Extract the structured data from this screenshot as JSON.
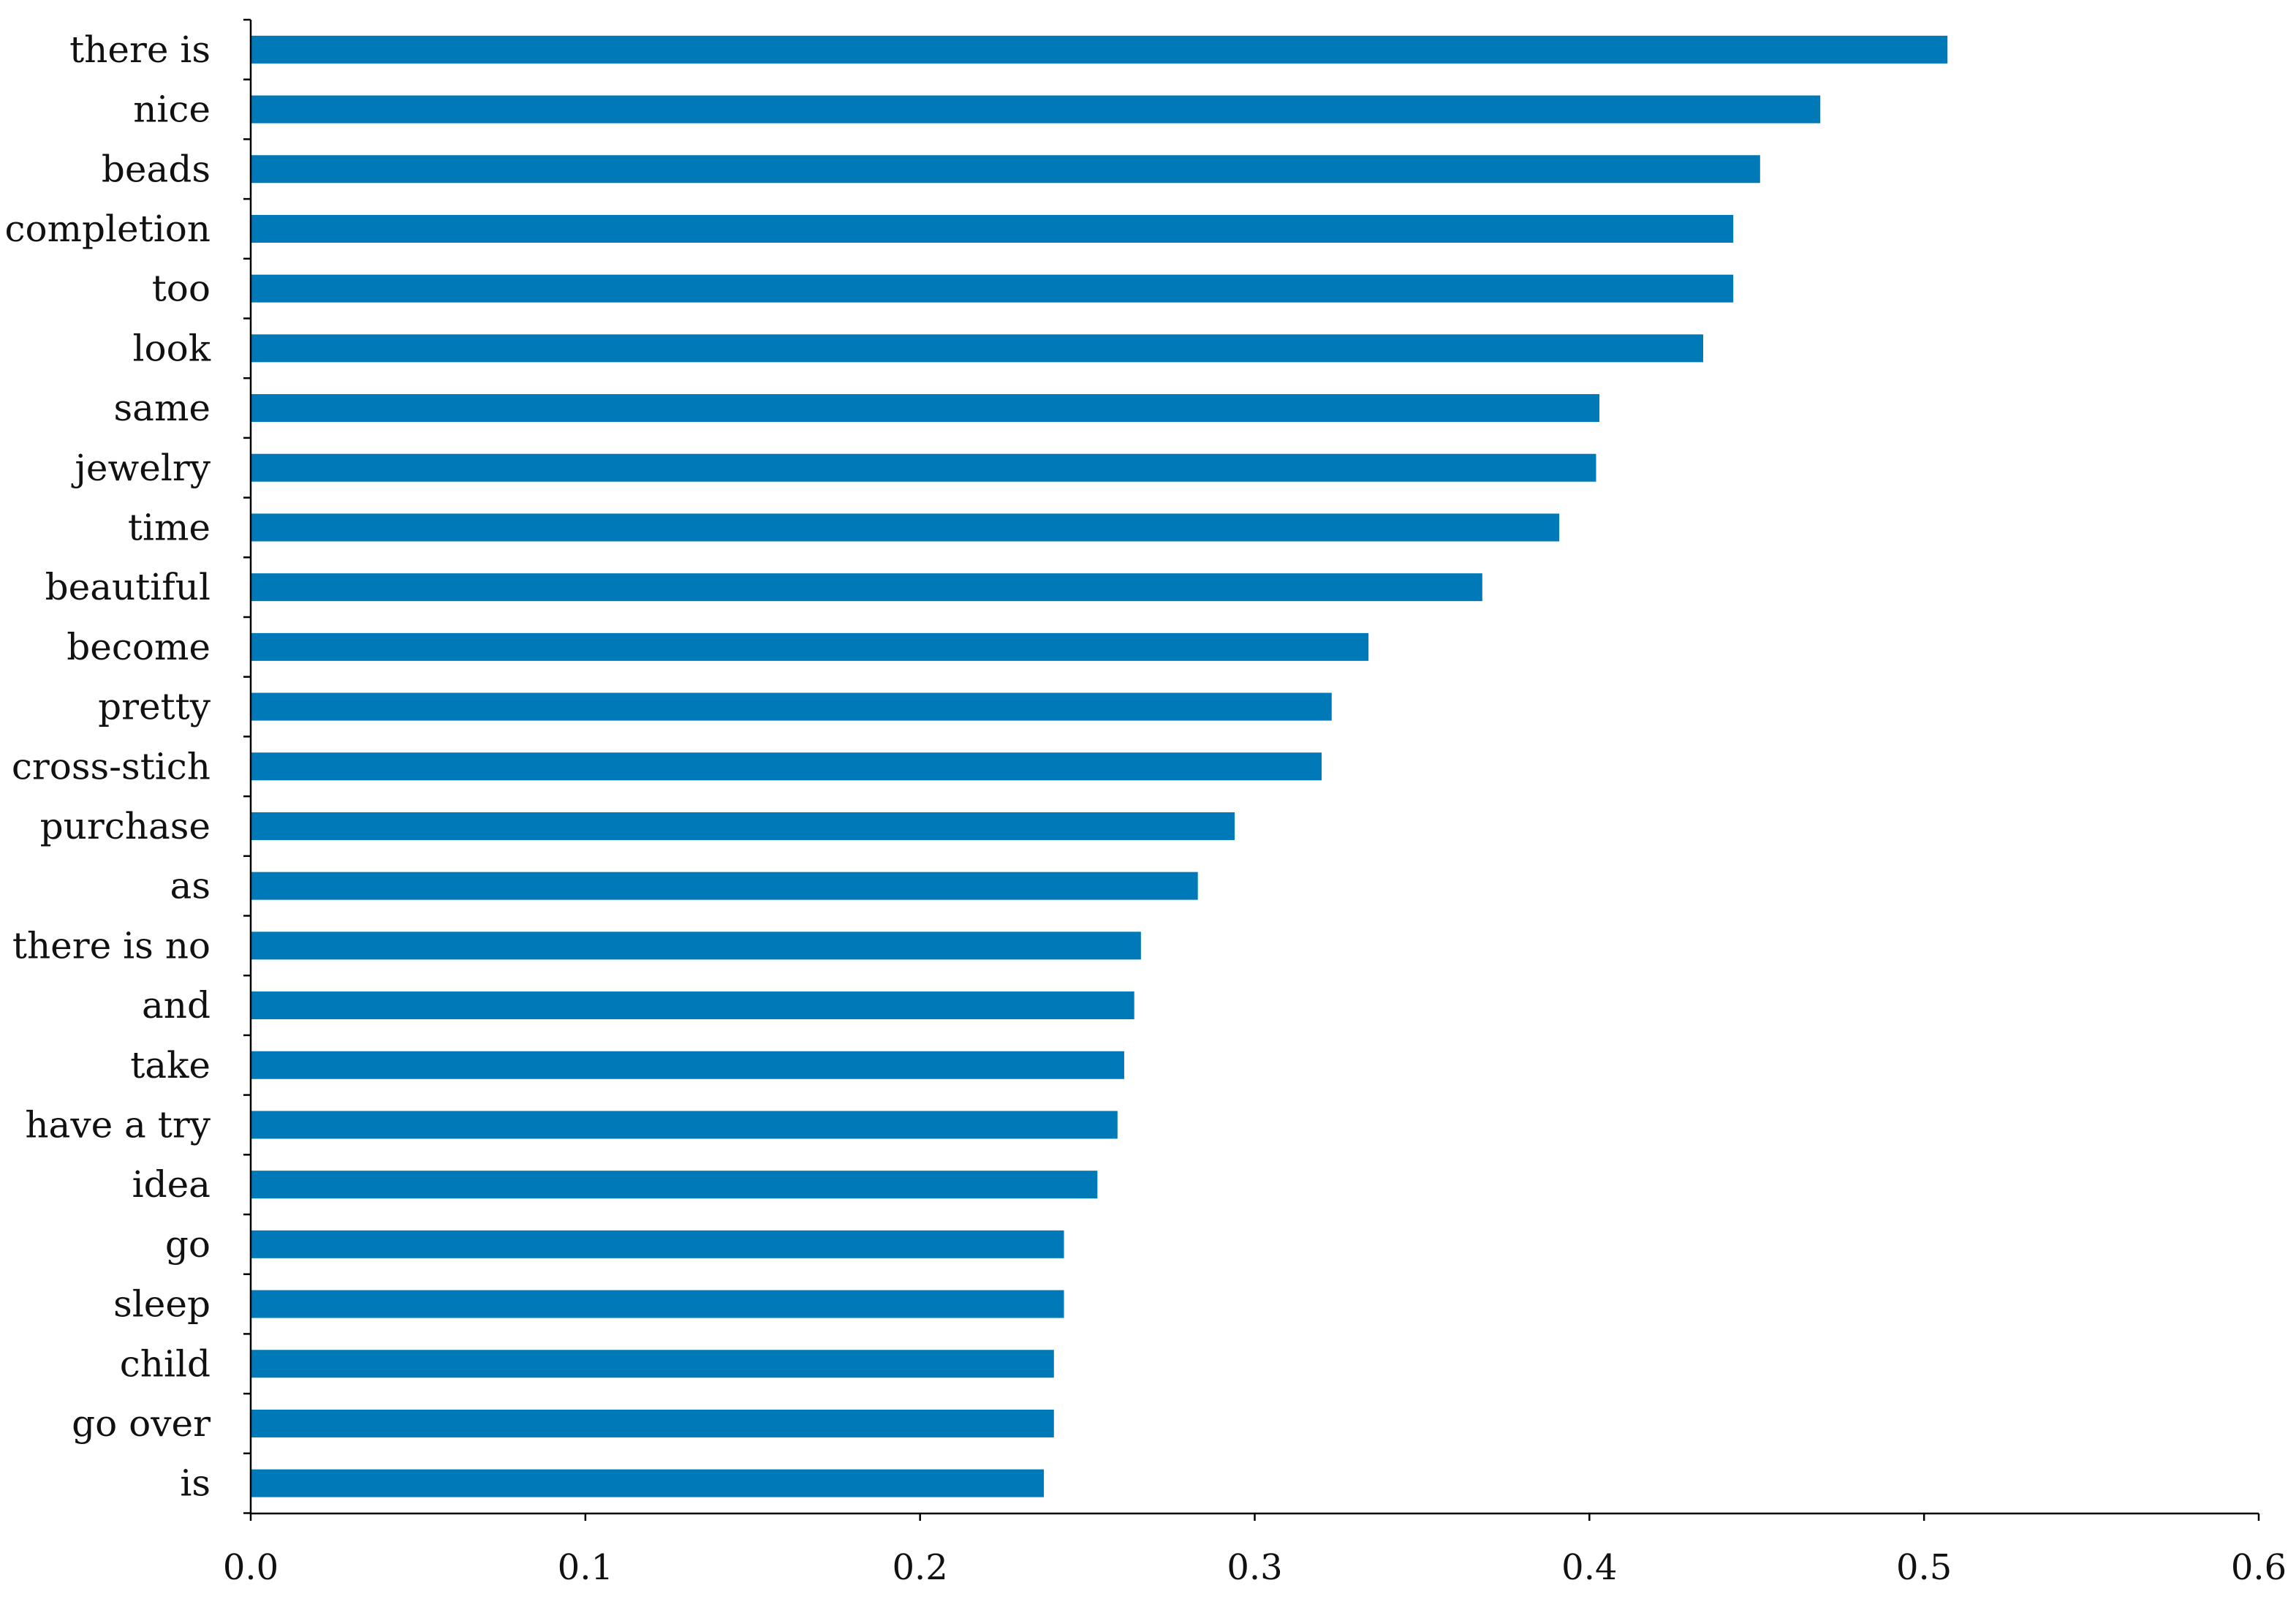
{
  "chart_data": {
    "type": "bar",
    "orientation": "horizontal",
    "title": "",
    "xlabel": "",
    "ylabel": "",
    "xlim": [
      0,
      0.6
    ],
    "x_ticks": [
      0.0,
      0.1,
      0.2,
      0.3,
      0.4,
      0.5,
      0.6
    ],
    "x_tick_labels": [
      "0.0",
      "0.1",
      "0.2",
      "0.3",
      "0.4",
      "0.5",
      "0.6"
    ],
    "grid": false,
    "legend": "none",
    "bar_color": "#0079B9",
    "categories": [
      "there is",
      "nice",
      "beads",
      "completion",
      "too",
      "look",
      "same",
      "jewelry",
      "time",
      "beautiful",
      "become",
      "pretty",
      "cross-stich",
      "purchase",
      "as",
      "there is no",
      "and",
      "take",
      "have a try",
      "idea",
      "go",
      "sleep",
      "child",
      "go over",
      "is"
    ],
    "values": [
      0.507,
      0.469,
      0.451,
      0.443,
      0.443,
      0.434,
      0.403,
      0.402,
      0.391,
      0.368,
      0.334,
      0.323,
      0.32,
      0.294,
      0.283,
      0.266,
      0.264,
      0.261,
      0.259,
      0.253,
      0.243,
      0.243,
      0.24,
      0.24,
      0.237
    ]
  }
}
